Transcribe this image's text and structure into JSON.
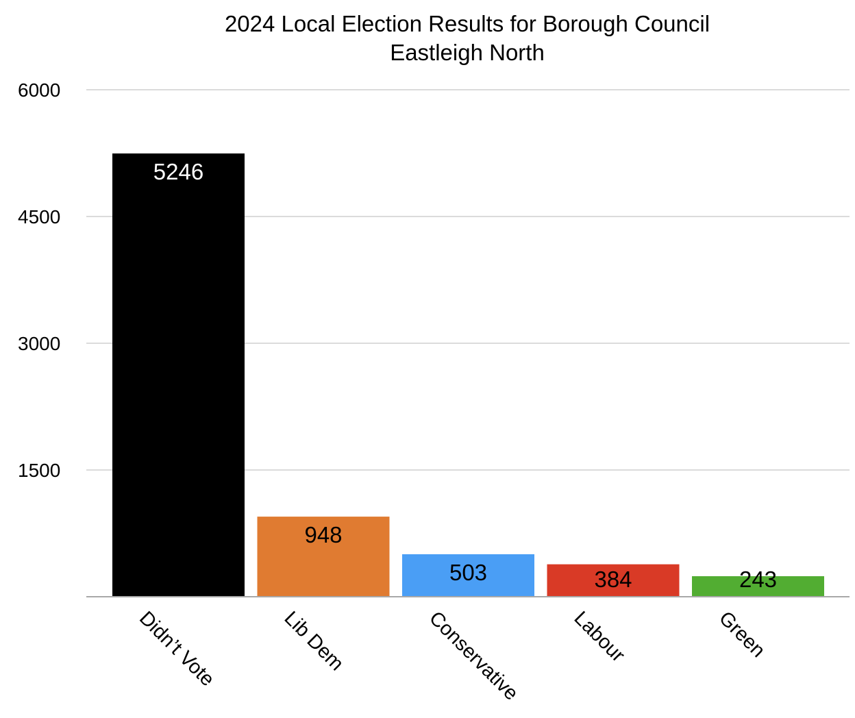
{
  "chart_data": {
    "type": "bar",
    "title": "2024 Local Election Results for Borough Council",
    "subtitle": "Eastleigh North",
    "categories": [
      "Didn’t Vote",
      "Lib Dem",
      "Conservative",
      "Labour",
      "Green"
    ],
    "values": [
      5246,
      948,
      503,
      384,
      243
    ],
    "colors": [
      "#000000",
      "#e07b31",
      "#4a9ef5",
      "#d93a26",
      "#52ad32"
    ],
    "label_colors": [
      "#ffffff",
      "#000000",
      "#000000",
      "#000000",
      "#000000"
    ],
    "yticks": [
      1500,
      3000,
      4500,
      6000
    ],
    "ylim": [
      0,
      6000
    ],
    "xlabel": "",
    "ylabel": "",
    "grid": true,
    "legend": "none"
  }
}
